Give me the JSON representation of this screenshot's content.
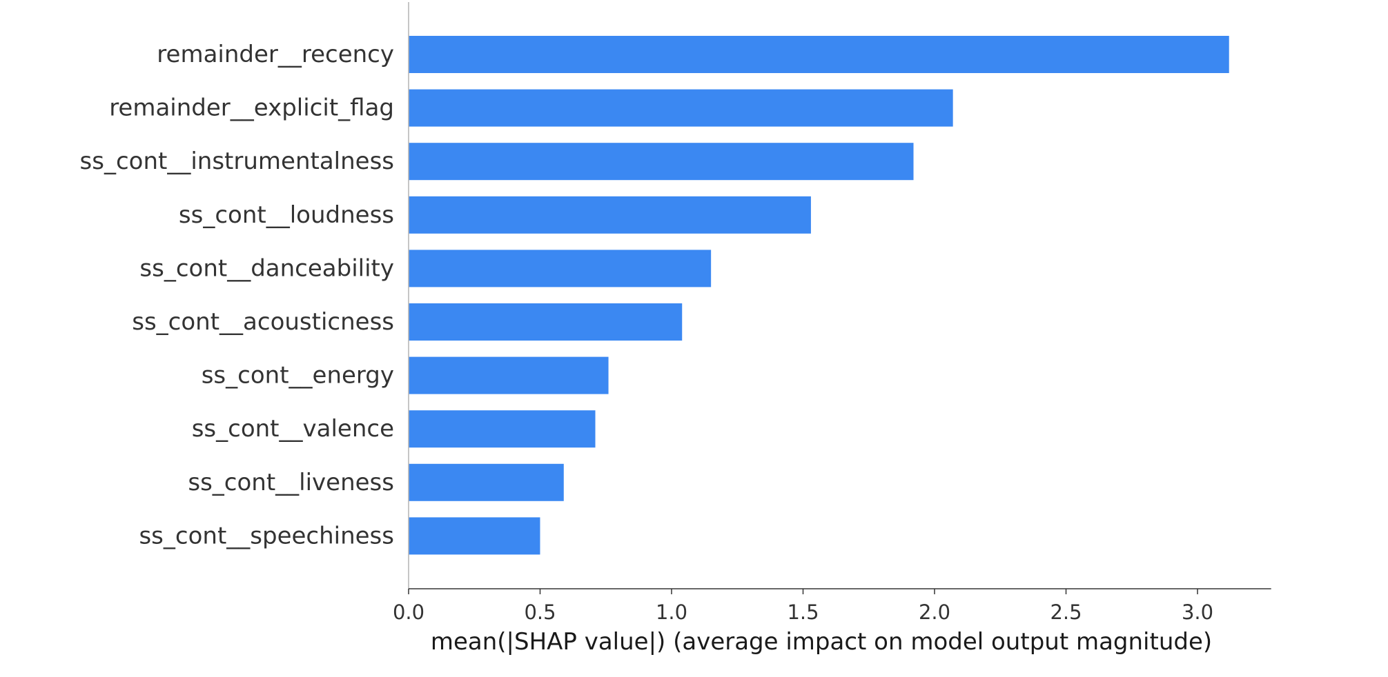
{
  "chart_data": {
    "type": "bar",
    "orientation": "horizontal",
    "title": "",
    "xlabel": "mean(|SHAP value|) (average impact on model output magnitude)",
    "ylabel": "",
    "xlim": [
      0,
      3.28
    ],
    "xticks": [
      0.0,
      0.5,
      1.0,
      1.5,
      2.0,
      2.5,
      3.0
    ],
    "xtick_labels": [
      "0.0",
      "0.5",
      "1.0",
      "1.5",
      "2.0",
      "2.5",
      "3.0"
    ],
    "grid": false,
    "bar_color": "#3b88f2",
    "categories": [
      "remainder__recency",
      "remainder__explicit_flag",
      "ss_cont__instrumentalness",
      "ss_cont__loudness",
      "ss_cont__danceability",
      "ss_cont__acousticness",
      "ss_cont__energy",
      "ss_cont__valence",
      "ss_cont__liveness",
      "ss_cont__speechiness"
    ],
    "values": [
      3.12,
      2.07,
      1.92,
      1.53,
      1.15,
      1.04,
      0.76,
      0.71,
      0.59,
      0.5
    ]
  }
}
